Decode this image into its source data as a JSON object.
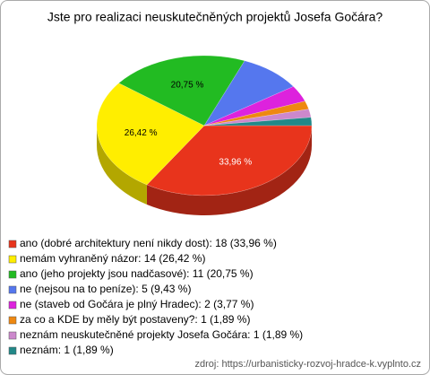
{
  "chart_data": {
    "type": "pie",
    "title": "Jste pro realizaci neuskutečněných projektů Josefa Gočára?",
    "categories": [
      "ano (dobré architektury není nikdy dost): 18 (33,96 %)",
      "nemám vyhraněný názor: 14 (26,42 %)",
      "ano (jeho projekty jsou nadčasové): 11 (20,75 %)",
      "ne (nejsou na to peníze): 5 (9,43 %)",
      "ne (staveb od Gočára je plný Hradec): 2 (3,77 %)",
      "za co a KDE by měly být postaveny?: 1 (1,89 %)",
      "neznám neuskutečněné projekty Josefa Gočára: 1 (1,89 %)",
      "neznám: 1 (1,89 %)"
    ],
    "values": [
      33.96,
      26.42,
      20.75,
      9.43,
      3.77,
      1.89,
      1.89,
      1.89
    ],
    "value_labels": [
      "33,96 %",
      "26,42 %",
      "20,75 %",
      null,
      null,
      null,
      null,
      null
    ],
    "colors": [
      "#e8341c",
      "#ffee00",
      "#22bb22",
      "#5577ee",
      "#dd22dd",
      "#ee8811",
      "#cc88cc",
      "#228888"
    ],
    "source": "zdroj: https://urbanisticky-rozvoj-hradce-k.vyplnto.cz"
  }
}
